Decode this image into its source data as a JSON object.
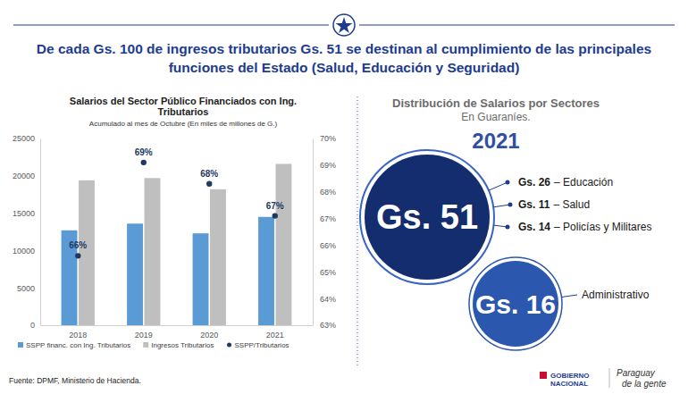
{
  "header": {
    "title": "De cada Gs. 100 de ingresos tributarios Gs. 51 se destinan al cumplimiento de las principales funciones del Estado (Salud, Educación y Seguridad)"
  },
  "chart_data": {
    "type": "bar",
    "title": "Salarios del Sector Público Financiados con Ing. Tributarios",
    "subtitle": "Acumulado al mes de Octubre (En miles de millones de G.)",
    "categories": [
      "2018",
      "2019",
      "2020",
      "2021"
    ],
    "series": [
      {
        "name": "SSPP financ. con Ing. Tributarios",
        "color": "#5b9bd5",
        "values": [
          12700,
          13600,
          12300,
          14500
        ]
      },
      {
        "name": "Ingresos Tributarios",
        "color": "#bfbfbf",
        "values": [
          19400,
          19700,
          18200,
          21600
        ]
      },
      {
        "name": "SSPP/Tributarios",
        "color": "#1f3864",
        "type": "scatter",
        "marker": "circle",
        "axis": "y2",
        "values": [
          65.6,
          69.1,
          68.3,
          67.1
        ],
        "data_labels": true,
        "value_labels": [
          "66%",
          "69%",
          "68%",
          "67%"
        ]
      }
    ],
    "ylim": [
      0,
      25000
    ],
    "yticks": [
      0,
      5000,
      10000,
      15000,
      20000,
      25000
    ],
    "y2lim": [
      63,
      70
    ],
    "y2ticks": [
      {
        "value": 63,
        "label": "63%"
      },
      {
        "value": 64,
        "label": "64%"
      },
      {
        "value": 65,
        "label": "65%"
      },
      {
        "value": 66,
        "label": "66%"
      },
      {
        "value": 67,
        "label": "67%"
      },
      {
        "value": 68,
        "label": "68%"
      },
      {
        "value": 69,
        "label": "69%"
      },
      {
        "value": 70,
        "label": "70%"
      }
    ],
    "grid": false,
    "legend": "bottom"
  },
  "distribution": {
    "title": "Distribución de Salarios por Sectores",
    "subtitle": "En Guaraníes.",
    "year": "2021",
    "main": {
      "amount": "Gs. 51",
      "items": [
        {
          "amount": "Gs. 26",
          "sector": "– Educación"
        },
        {
          "amount": "Gs. 11",
          "sector": "– Salud"
        },
        {
          "amount": "Gs. 14",
          "sector": "– Policías y Militares"
        }
      ]
    },
    "secondary": {
      "amount": "Gs. 16",
      "sector": "Administrativo"
    }
  },
  "footer": {
    "source": "Fuente: DPMF, Ministerio de Hacienda.",
    "logo": [
      "GOBIERNO",
      "NACIONAL"
    ],
    "slogan": [
      "Paraguay",
      "de la gente"
    ]
  }
}
